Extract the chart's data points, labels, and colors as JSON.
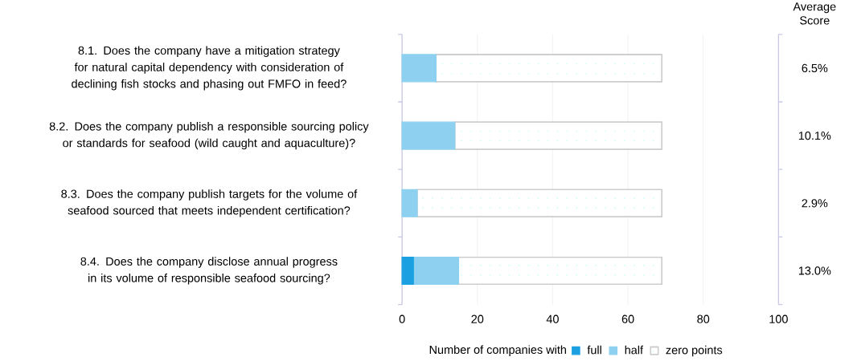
{
  "chart_data": {
    "type": "bar",
    "orientation": "horizontal",
    "stacked": true,
    "categories": [
      "8.1. Does the company have a mitigation strategy for natural capital dependency with consideration of declining fish stocks and phasing out FMFO in feed?",
      "8.2. Does the company publish a responsible sourcing policy or standards for seafood (wild caught and aquaculture)?",
      "8.3. Does the company publish targets for the volume of seafood sourced that meets independent certification?",
      "8.4. Does the company disclose annual progress in its volume of responsible seafood sourcing?"
    ],
    "series": [
      {
        "name": "full",
        "color": "#1ba1e2",
        "values": [
          0,
          0,
          0,
          3
        ]
      },
      {
        "name": "half",
        "color": "#8dd0f0",
        "values": [
          9,
          14,
          4,
          12
        ]
      },
      {
        "name": "zero points",
        "color": "#ffffff",
        "values": [
          60,
          55,
          65,
          54
        ]
      }
    ],
    "xlim": [
      0,
      100
    ],
    "xticks": [
      0,
      20,
      40,
      60,
      80,
      100
    ],
    "grid": "x",
    "legend": "bottom",
    "legend_title": "Number of companies with",
    "annotations": [
      "Average Score",
      "6.5%",
      "10.1%",
      "2.9%",
      "13.0%"
    ]
  }
}
